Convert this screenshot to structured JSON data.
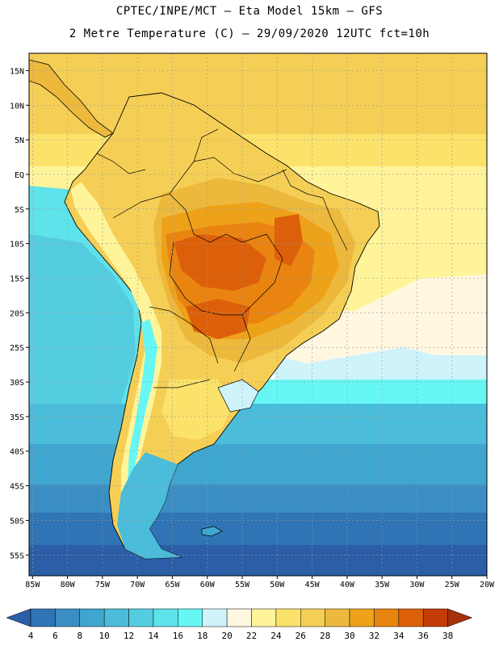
{
  "header": {
    "line1": "CPTEC/INPE/MCT –  Eta Model 15km – GFS",
    "line2": "2 Metre Temperature (C) – 29/09/2020 12UTC fct=10h"
  },
  "axes": {
    "lat_labels": [
      "15N",
      "10N",
      "5N",
      "EQ",
      "5S",
      "10S",
      "15S",
      "20S",
      "25S",
      "30S",
      "35S",
      "40S",
      "45S",
      "50S",
      "55S"
    ],
    "lat_values": [
      15,
      10,
      5,
      0,
      -5,
      -10,
      -15,
      -20,
      -25,
      -30,
      -35,
      -40,
      -45,
      -50,
      -55
    ],
    "lon_labels": [
      "85W",
      "80W",
      "75W",
      "70W",
      "65W",
      "60W",
      "55W",
      "50W",
      "45W",
      "40W",
      "35W",
      "30W",
      "25W",
      "20W"
    ],
    "lon_values": [
      -85,
      -80,
      -75,
      -70,
      -65,
      -60,
      -55,
      -50,
      -45,
      -40,
      -35,
      -30,
      -25,
      -20
    ],
    "lat_range": [
      -58,
      17.5
    ],
    "lon_range": [
      -85.5,
      -20
    ]
  },
  "colorbar": {
    "labels": [
      "4",
      "6",
      "8",
      "10",
      "12",
      "14",
      "16",
      "18",
      "20",
      "22",
      "24",
      "26",
      "28",
      "30",
      "32",
      "34",
      "36",
      "38"
    ],
    "colors": [
      "#2b5ea7",
      "#2f74b4",
      "#3a8ec3",
      "#3fa6cf",
      "#4bbcd9",
      "#55cde1",
      "#5fe3ea",
      "#66f7f5",
      "#cff3fb",
      "#fff7e0",
      "#fff49a",
      "#fbe26b",
      "#f5cf55",
      "#edb93d",
      "#eea21a",
      "#e98411",
      "#dc600a",
      "#c43c06",
      "#a8300a"
    ],
    "units": "C"
  },
  "colors": {
    "ocean_cold": "#2b5ea7",
    "ocean_mid": "#4bbcd9",
    "ocean_warm": "#fff49a",
    "land_hot": "#dc600a",
    "land_warm": "#edb93d",
    "border": "#000000"
  }
}
